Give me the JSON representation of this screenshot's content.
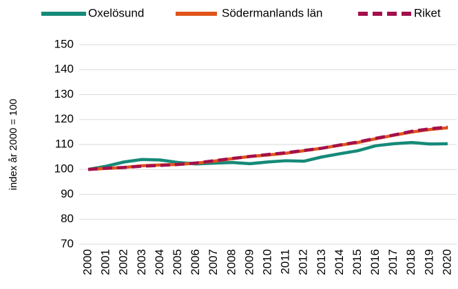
{
  "chart_data": {
    "type": "line",
    "categories": [
      "2000",
      "2001",
      "2002",
      "2003",
      "2004",
      "2005",
      "2006",
      "2007",
      "2008",
      "2009",
      "2010",
      "2011",
      "2012",
      "2013",
      "2014",
      "2015",
      "2016",
      "2017",
      "2018",
      "2019",
      "2020"
    ],
    "y_label": "index år 2000 = 100",
    "series": [
      {
        "name": "Oxelösund",
        "color": "#168a78",
        "dash": false,
        "values": [
          100,
          101.3,
          103,
          104,
          103.8,
          102.8,
          102.2,
          102.5,
          102.8,
          102.3,
          103,
          103.5,
          103.3,
          105,
          106.3,
          107.5,
          109.5,
          110.3,
          110.8,
          110.2,
          110.3
        ]
      },
      {
        "name": "Södermanlands län",
        "color": "#e0541a",
        "dash": false,
        "values": [
          100,
          100.4,
          100.8,
          101.5,
          101.8,
          102,
          102.5,
          103.3,
          104.3,
          105.2,
          105.8,
          106.5,
          107.5,
          108.5,
          109.7,
          110.8,
          112.3,
          113.7,
          115,
          116,
          116.7
        ]
      },
      {
        "name": "Riket",
        "color": "#a3104c",
        "dash": true,
        "values": [
          100,
          100.5,
          100.8,
          101.3,
          101.6,
          102,
          102.6,
          103.5,
          104.4,
          105.2,
          106,
          106.7,
          107.6,
          108.5,
          109.8,
          111,
          112.5,
          113.8,
          115.3,
          116.3,
          117
        ]
      }
    ],
    "ylim": [
      70,
      150
    ],
    "yticks": [
      70,
      80,
      90,
      100,
      110,
      120,
      130,
      140,
      150
    ],
    "grid": true,
    "legend": "top"
  }
}
